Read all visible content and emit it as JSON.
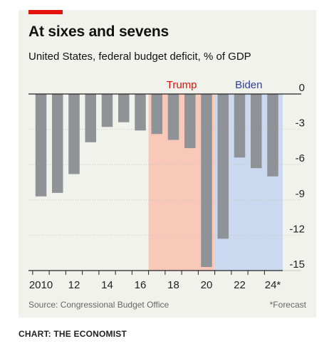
{
  "title": "At sixes and sevens",
  "subtitle": "United States, federal budget deficit, % of GDP",
  "source": "Source: Congressional Budget Office",
  "note": "*Forecast",
  "credit": "CHART: THE ECONOMIST",
  "colors": {
    "bar": "#8f9296",
    "trump_band": "#f8c8b8",
    "biden_band": "#cad9ef",
    "trump_label": "#e3120b",
    "biden_label": "#2f3e9e",
    "accent": "#e3120b"
  },
  "chart_data": {
    "type": "bar",
    "title": "At sixes and sevens",
    "subtitle": "United States, federal budget deficit, % of GDP",
    "years": [
      2010,
      2011,
      2012,
      2013,
      2014,
      2015,
      2016,
      2017,
      2018,
      2019,
      2020,
      2021,
      2022,
      2023,
      2024
    ],
    "values": [
      -8.7,
      -8.4,
      -6.8,
      -4.1,
      -2.8,
      -2.4,
      -3.1,
      -3.4,
      -3.9,
      -4.6,
      -14.7,
      -12.3,
      -5.4,
      -6.3,
      -7.0
    ],
    "x_tick_labels": [
      {
        "year": 2010,
        "label": "2010"
      },
      {
        "year": 2012,
        "label": "12"
      },
      {
        "year": 2014,
        "label": "14"
      },
      {
        "year": 2016,
        "label": "16"
      },
      {
        "year": 2018,
        "label": "18"
      },
      {
        "year": 2020,
        "label": "20"
      },
      {
        "year": 2022,
        "label": "22"
      },
      {
        "year": 2024,
        "label": "24*"
      }
    ],
    "y_ticks": [
      {
        "value": 0,
        "label": "0"
      },
      {
        "value": -3,
        "label": "-3"
      },
      {
        "value": -6,
        "label": "-6"
      },
      {
        "value": -9,
        "label": "-9"
      },
      {
        "value": -12,
        "label": "-12"
      },
      {
        "value": -15,
        "label": "-15"
      }
    ],
    "ylim": [
      -15,
      0
    ],
    "grid": true,
    "y_axis_side": "right",
    "shaded_periods": [
      {
        "label": "Trump",
        "start": 2017,
        "end": 2020,
        "color": "#f8c8b8",
        "label_color": "#e3120b"
      },
      {
        "label": "Biden",
        "start": 2021,
        "end": 2024,
        "color": "#cad9ef",
        "label_color": "#2f3e9e"
      }
    ]
  }
}
